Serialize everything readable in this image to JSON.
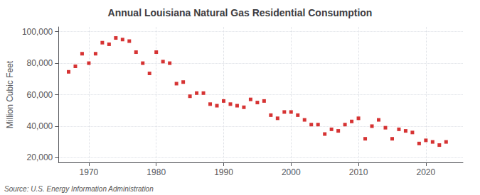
{
  "chart_data": {
    "type": "scatter",
    "title": "Annual Louisiana Natural Gas Residential Consumption",
    "ylabel": "Million Cubic Feet",
    "annotation": "Source: U.S. Energy Information Administration",
    "color": "#cc0000",
    "marker": "square",
    "grid": true,
    "x": [
      1967,
      1968,
      1969,
      1970,
      1971,
      1972,
      1973,
      1974,
      1975,
      1976,
      1977,
      1978,
      1979,
      1980,
      1981,
      1982,
      1983,
      1984,
      1985,
      1986,
      1987,
      1988,
      1989,
      1990,
      1991,
      1992,
      1993,
      1994,
      1995,
      1996,
      1997,
      1998,
      1999,
      2000,
      2001,
      2002,
      2003,
      2004,
      2005,
      2006,
      2007,
      2008,
      2009,
      2010,
      2011,
      2012,
      2013,
      2014,
      2015,
      2016,
      2017,
      2018,
      2019,
      2020,
      2021,
      2022,
      2023
    ],
    "values": [
      74500,
      78000,
      86000,
      80000,
      86000,
      93000,
      92000,
      96000,
      95000,
      94000,
      87000,
      80000,
      73500,
      87000,
      81000,
      80000,
      67000,
      68000,
      59000,
      61000,
      61000,
      54000,
      53000,
      56000,
      54000,
      53000,
      52000,
      57000,
      55000,
      56000,
      47000,
      45000,
      49000,
      49000,
      47000,
      44000,
      41000,
      41000,
      35000,
      38000,
      37000,
      41000,
      43000,
      45000,
      32000,
      40000,
      44000,
      39000,
      32000,
      38000,
      37000,
      36000,
      29000,
      31000,
      30000,
      28000,
      30000
    ],
    "xlim": [
      1965.5,
      2025.5
    ],
    "xticks": [
      1970,
      1980,
      1990,
      2000,
      2010,
      2020
    ],
    "ylim": [
      17000,
      103000
    ],
    "yticks": [
      {
        "value": 20000,
        "label": "20,000"
      },
      {
        "value": 40000,
        "label": "40,000"
      },
      {
        "value": 60000,
        "label": "60,000"
      },
      {
        "value": 80000,
        "label": "80,000"
      },
      {
        "value": 100000,
        "label": "100,000"
      }
    ]
  }
}
